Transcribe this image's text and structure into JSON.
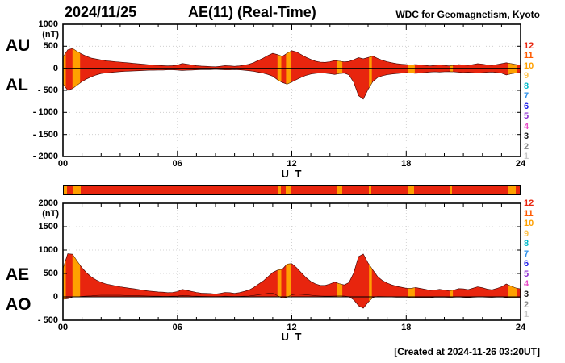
{
  "header": {
    "date": "2024/11/25",
    "title": "AE(11) (Real-Time)",
    "source": "WDC for Geomagnetism, Kyoto"
  },
  "footer": {
    "created_text": "[Created at 2024-11-26 03:20UT]"
  },
  "top_panel": {
    "index_labels": {
      "upper": "AU",
      "lower": "AL"
    },
    "unit": "(nT)",
    "ylim": [
      -2000,
      1000
    ],
    "y_ticks": [
      {
        "value": 1000,
        "label": "1000"
      },
      {
        "value": 500,
        "label": "500"
      },
      {
        "value": 0,
        "label": "0"
      },
      {
        "value": -500,
        "label": "- 500"
      },
      {
        "value": -1000,
        "label": "- 1000"
      },
      {
        "value": -1500,
        "label": "- 1500"
      },
      {
        "value": -2000,
        "label": "- 2000"
      }
    ],
    "x_ticks": [
      {
        "hour": 0,
        "label": "00"
      },
      {
        "hour": 6,
        "label": "06"
      },
      {
        "hour": 12,
        "label": "12"
      },
      {
        "hour": 18,
        "label": "18"
      },
      {
        "hour": 24,
        "label": "24"
      }
    ],
    "x_axis_label": "U T"
  },
  "bottom_panel": {
    "index_labels": {
      "upper": "AE",
      "lower": "AO"
    },
    "unit": "(nT)",
    "ylim": [
      -500,
      2000
    ],
    "y_ticks": [
      {
        "value": 2000,
        "label": "2000"
      },
      {
        "value": 1500,
        "label": "1500"
      },
      {
        "value": 1000,
        "label": "1000"
      },
      {
        "value": 500,
        "label": "500"
      },
      {
        "value": 0,
        "label": "0"
      },
      {
        "value": -500,
        "label": "- 500"
      }
    ],
    "x_ticks": [
      {
        "hour": 0,
        "label": "00"
      },
      {
        "hour": 6,
        "label": "06"
      },
      {
        "hour": 12,
        "label": "12"
      },
      {
        "hour": 18,
        "label": "18"
      },
      {
        "hour": 24,
        "label": "24"
      }
    ],
    "x_axis_label": "U T"
  },
  "station_legend": {
    "counts": [
      12,
      11,
      10,
      9,
      8,
      7,
      6,
      5,
      4,
      3,
      2,
      1
    ],
    "colors": {
      "12": "#e8250e",
      "11": "#ff5a00",
      "10": "#ffa000",
      "9": "#ffc34d",
      "8": "#00b8c8",
      "7": "#2d8fe8",
      "6": "#1a1ae8",
      "5": "#8c2dd0",
      "4": "#e84dc8",
      "3": "#1a1a1a",
      "2": "#8c8c8c",
      "1": "#c8c8c8"
    }
  },
  "station_bar": {
    "default_count": 12,
    "segments": [
      {
        "start": 0.0,
        "end": 0.15,
        "count": 10
      },
      {
        "start": 0.5,
        "end": 0.9,
        "count": 10
      },
      {
        "start": 11.25,
        "end": 11.45,
        "count": 10
      },
      {
        "start": 11.7,
        "end": 11.95,
        "count": 10
      },
      {
        "start": 14.35,
        "end": 14.65,
        "count": 10
      },
      {
        "start": 16.05,
        "end": 16.2,
        "count": 10
      },
      {
        "start": 18.1,
        "end": 18.45,
        "count": 10
      },
      {
        "start": 20.3,
        "end": 20.45,
        "count": 10
      },
      {
        "start": 23.35,
        "end": 23.8,
        "count": 10
      }
    ]
  },
  "chart_data": {
    "type": "area",
    "title": "AE(11) (Real-Time)",
    "date": "2024/11/25",
    "xlabel": "U T",
    "ylabel": "(nT)",
    "x_range": [
      0,
      24
    ],
    "panels": {
      "top": {
        "series": [
          "AU",
          "AL"
        ],
        "ylim": [
          -2000,
          1000
        ]
      },
      "bottom": {
        "series": [
          "AE",
          "AO"
        ],
        "ylim": [
          -500,
          2000
        ]
      }
    },
    "fill_color_by_station_count": true,
    "x": [
      0,
      0.25,
      0.5,
      0.75,
      1,
      1.25,
      1.5,
      1.75,
      2,
      2.25,
      2.5,
      2.75,
      3,
      3.25,
      3.5,
      3.75,
      4,
      4.25,
      4.5,
      4.75,
      5,
      5.25,
      5.5,
      5.75,
      6,
      6.25,
      6.5,
      6.75,
      7,
      7.25,
      7.5,
      7.75,
      8,
      8.25,
      8.5,
      8.75,
      9,
      9.25,
      9.5,
      9.75,
      10,
      10.25,
      10.5,
      10.75,
      11,
      11.25,
      11.5,
      11.75,
      12,
      12.25,
      12.5,
      12.75,
      13,
      13.25,
      13.5,
      13.75,
      14,
      14.25,
      14.5,
      14.75,
      15,
      15.25,
      15.5,
      15.75,
      16,
      16.25,
      16.5,
      16.75,
      17,
      17.25,
      17.5,
      17.75,
      18,
      18.25,
      18.5,
      18.75,
      19,
      19.25,
      19.5,
      19.75,
      20,
      20.25,
      20.5,
      20.75,
      21,
      21.25,
      21.5,
      21.75,
      22,
      22.25,
      22.5,
      22.75,
      23,
      23.25,
      23.5,
      23.75,
      24
    ],
    "series": [
      {
        "name": "AU",
        "panel": "top",
        "values": [
          250,
          420,
          450,
          380,
          320,
          270,
          230,
          210,
          190,
          170,
          160,
          150,
          140,
          130,
          120,
          110,
          100,
          90,
          80,
          70,
          65,
          60,
          55,
          60,
          70,
          110,
          95,
          75,
          60,
          50,
          45,
          40,
          35,
          45,
          60,
          55,
          45,
          55,
          70,
          90,
          130,
          180,
          230,
          290,
          340,
          310,
          270,
          340,
          400,
          370,
          310,
          250,
          200,
          160,
          140,
          135,
          150,
          175,
          160,
          145,
          155,
          195,
          240,
          215,
          245,
          275,
          225,
          180,
          150,
          125,
          105,
          95,
          85,
          75,
          85,
          75,
          65,
          55,
          65,
          75,
          65,
          55,
          65,
          85,
          75,
          65,
          85,
          105,
          95,
          75,
          65,
          85,
          105,
          125,
          105,
          85,
          75
        ]
      },
      {
        "name": "AL",
        "panel": "top",
        "values": [
          -350,
          -500,
          -460,
          -380,
          -300,
          -240,
          -190,
          -150,
          -120,
          -105,
          -95,
          -85,
          -75,
          -70,
          -65,
          -60,
          -55,
          -50,
          -45,
          -45,
          -40,
          -40,
          -35,
          -35,
          -40,
          -50,
          -45,
          -40,
          -35,
          -30,
          -30,
          -30,
          -25,
          -30,
          -35,
          -35,
          -30,
          -35,
          -45,
          -55,
          -70,
          -90,
          -110,
          -140,
          -180,
          -260,
          -320,
          -360,
          -310,
          -255,
          -205,
          -160,
          -130,
          -115,
          -105,
          -110,
          -125,
          -140,
          -120,
          -110,
          -150,
          -320,
          -620,
          -700,
          -480,
          -300,
          -210,
          -170,
          -145,
          -130,
          -120,
          -110,
          -100,
          -105,
          -115,
          -105,
          -95,
          -85,
          -80,
          -85,
          -80,
          -75,
          -80,
          -90,
          -95,
          -90,
          -100,
          -110,
          -100,
          -90,
          -85,
          -95,
          -110,
          -150,
          -125,
          -105,
          -95
        ]
      },
      {
        "name": "AE",
        "panel": "bottom",
        "values": [
          600,
          920,
          910,
          760,
          620,
          510,
          420,
          360,
          310,
          275,
          255,
          235,
          215,
          200,
          185,
          170,
          155,
          140,
          125,
          115,
          105,
          100,
          90,
          95,
          110,
          160,
          140,
          115,
          95,
          80,
          75,
          70,
          60,
          75,
          95,
          90,
          75,
          90,
          115,
          145,
          200,
          270,
          340,
          430,
          520,
          570,
          590,
          700,
          710,
          625,
          515,
          410,
          330,
          275,
          245,
          245,
          275,
          315,
          280,
          255,
          305,
          515,
          860,
          915,
          725,
          575,
          435,
          350,
          295,
          255,
          225,
          205,
          185,
          180,
          200,
          180,
          160,
          140,
          145,
          160,
          145,
          130,
          145,
          175,
          170,
          155,
          185,
          215,
          195,
          165,
          150,
          180,
          215,
          275,
          230,
          190,
          170
        ]
      },
      {
        "name": "AO",
        "panel": "bottom",
        "values": [
          -50,
          -40,
          -5,
          0,
          10,
          15,
          20,
          30,
          35,
          33,
          33,
          33,
          33,
          30,
          28,
          25,
          23,
          20,
          18,
          13,
          13,
          10,
          10,
          13,
          15,
          30,
          25,
          18,
          13,
          10,
          8,
          5,
          5,
          8,
          13,
          10,
          8,
          10,
          13,
          18,
          30,
          45,
          60,
          75,
          80,
          25,
          -25,
          -10,
          45,
          58,
          53,
          45,
          35,
          23,
          18,
          13,
          13,
          18,
          20,
          18,
          3,
          -63,
          -190,
          -243,
          -118,
          -13,
          8,
          5,
          3,
          -3,
          -8,
          -8,
          -8,
          -15,
          -15,
          -15,
          -15,
          -15,
          -8,
          -5,
          -8,
          -10,
          -8,
          -3,
          -10,
          -13,
          -8,
          -3,
          -3,
          -8,
          -10,
          -5,
          -3,
          -13,
          -10,
          -10,
          -10
        ]
      }
    ]
  },
  "colors": {
    "background": "#ffffff",
    "frame": "#000000",
    "grid": "#c8c8c8"
  }
}
